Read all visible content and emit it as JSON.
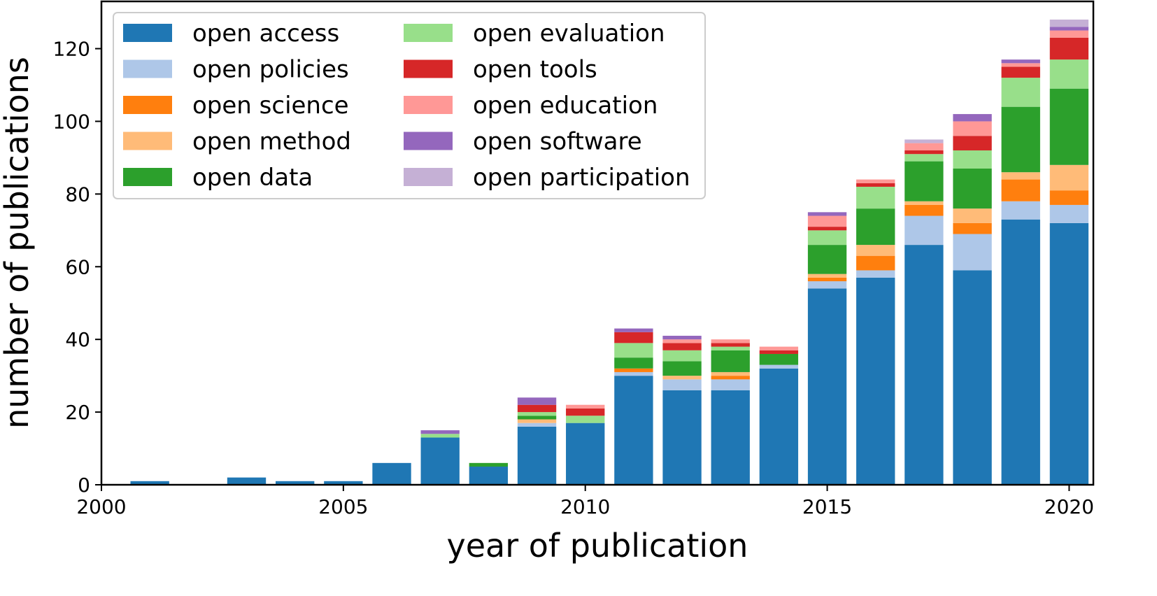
{
  "chart_data": {
    "type": "bar",
    "stacked": true,
    "title": "",
    "xlabel": "year of publication",
    "ylabel": "number of publications",
    "xlim": [
      2000,
      2020.5
    ],
    "ylim": [
      0,
      133
    ],
    "x_ticks": [
      2000,
      2005,
      2010,
      2015,
      2020
    ],
    "x_tick_labels": [
      "2000",
      "2005",
      "2010",
      "2015",
      "2020"
    ],
    "y_ticks": [
      0,
      20,
      40,
      60,
      80,
      100,
      120
    ],
    "y_tick_labels": [
      "0",
      "20",
      "40",
      "60",
      "80",
      "100",
      "120"
    ],
    "grid": false,
    "legend_position": "top-left",
    "legend_columns": 2,
    "x": [
      2001,
      2002,
      2003,
      2004,
      2005,
      2006,
      2007,
      2008,
      2009,
      2010,
      2011,
      2012,
      2013,
      2014,
      2015,
      2016,
      2017,
      2018,
      2019,
      2020
    ],
    "series": [
      {
        "name": "open access",
        "color": "#1f77b4",
        "values": [
          1,
          0,
          2,
          1,
          1,
          6,
          13,
          5,
          16,
          17,
          30,
          26,
          26,
          32,
          54,
          57,
          66,
          59,
          73,
          72
        ]
      },
      {
        "name": "open policies",
        "color": "#aec7e8",
        "values": [
          0,
          0,
          0,
          0,
          0,
          0,
          0,
          0,
          1,
          0,
          1,
          3,
          3,
          1,
          2,
          2,
          8,
          10,
          5,
          5
        ]
      },
      {
        "name": "open science",
        "color": "#ff7f0e",
        "values": [
          0,
          0,
          0,
          0,
          0,
          0,
          0,
          0,
          0,
          0,
          1,
          0,
          1,
          0,
          1,
          4,
          3,
          3,
          6,
          4
        ]
      },
      {
        "name": "open method",
        "color": "#ffbb78",
        "values": [
          0,
          0,
          0,
          0,
          0,
          0,
          0,
          0,
          1,
          0,
          0,
          1,
          1,
          0,
          1,
          3,
          1,
          4,
          2,
          7
        ]
      },
      {
        "name": "open data",
        "color": "#2ca02c",
        "values": [
          0,
          0,
          0,
          0,
          0,
          0,
          0,
          1,
          1,
          0,
          3,
          4,
          6,
          3,
          8,
          10,
          11,
          11,
          18,
          21
        ]
      },
      {
        "name": "open evaluation",
        "color": "#98df8a",
        "values": [
          0,
          0,
          0,
          0,
          0,
          0,
          1,
          0,
          1,
          2,
          4,
          3,
          1,
          0,
          4,
          6,
          2,
          5,
          8,
          8
        ]
      },
      {
        "name": "open tools",
        "color": "#d62728",
        "values": [
          0,
          0,
          0,
          0,
          0,
          0,
          0,
          0,
          2,
          2,
          3,
          2,
          1,
          1,
          1,
          1,
          1,
          4,
          3,
          6
        ]
      },
      {
        "name": "open education",
        "color": "#ff9896",
        "values": [
          0,
          0,
          0,
          0,
          0,
          0,
          0,
          0,
          0,
          1,
          0,
          1,
          1,
          1,
          3,
          1,
          2,
          4,
          1,
          2
        ]
      },
      {
        "name": "open software",
        "color": "#9467bd",
        "values": [
          0,
          0,
          0,
          0,
          0,
          0,
          1,
          0,
          2,
          0,
          1,
          1,
          0,
          0,
          1,
          0,
          0,
          2,
          1,
          1
        ]
      },
      {
        "name": "open participation",
        "color": "#c5b0d5",
        "values": [
          0,
          0,
          0,
          0,
          0,
          0,
          0,
          0,
          0,
          0,
          0,
          0,
          0,
          0,
          0,
          0,
          1,
          0,
          0,
          2
        ]
      }
    ]
  }
}
